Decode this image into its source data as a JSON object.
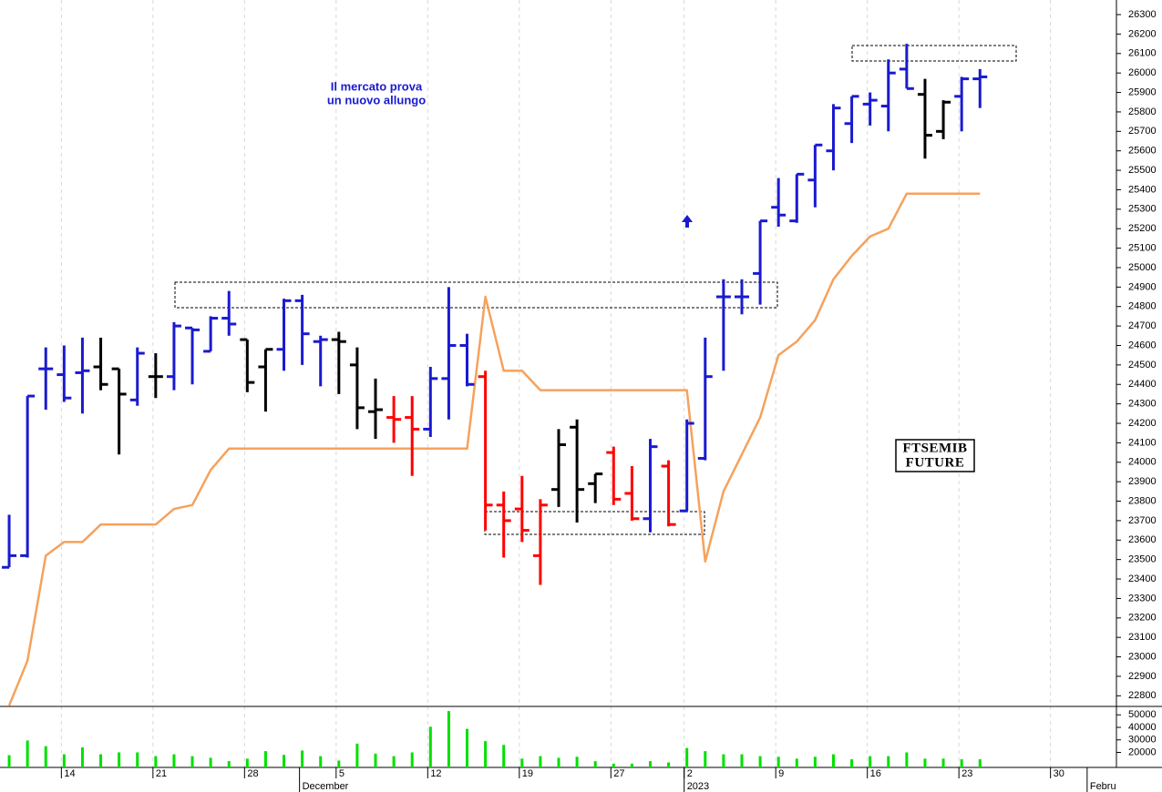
{
  "chart_data": {
    "type": "ohlc",
    "x": [
      0,
      1,
      2,
      3,
      4,
      5,
      6,
      7,
      8,
      9,
      10,
      11,
      12,
      13,
      14,
      15,
      16,
      17,
      18,
      19,
      20,
      21,
      22,
      23,
      24,
      25,
      26,
      27,
      28,
      29,
      30,
      31,
      32,
      33,
      34,
      35,
      36,
      37,
      38,
      39,
      40,
      41,
      42,
      43,
      44,
      45,
      46,
      47,
      48,
      49,
      50,
      51,
      52,
      53
    ],
    "open": [
      23460,
      23520,
      24480,
      24450,
      24460,
      24490,
      24480,
      24320,
      24440,
      24440,
      24690,
      24570,
      24740,
      24630,
      24490,
      24580,
      24830,
      24620,
      24630,
      24500,
      24260,
      24230,
      24230,
      24170,
      24430,
      24600,
      24440,
      23780,
      23760,
      23520,
      23860,
      24180,
      23890,
      24050,
      23840,
      23710,
      23980,
      23750,
      24020,
      24850,
      24850,
      24970,
      25310,
      25240,
      25450,
      25600,
      25740,
      25840,
      25830,
      26020,
      25890,
      25700,
      25880,
      25970
    ],
    "high": [
      23730,
      24340,
      24590,
      24600,
      24640,
      24640,
      24480,
      24590,
      24560,
      24720,
      24690,
      24750,
      24880,
      24630,
      24580,
      24840,
      24860,
      24650,
      24670,
      24590,
      24430,
      24340,
      24340,
      24490,
      24900,
      24660,
      24470,
      23850,
      23930,
      23810,
      24170,
      24220,
      23940,
      24080,
      23980,
      24120,
      24010,
      24220,
      24640,
      24940,
      24940,
      25240,
      25460,
      25480,
      25630,
      25840,
      25880,
      25900,
      26070,
      26150,
      25970,
      25860,
      25980,
      26020
    ],
    "low": [
      23460,
      23510,
      24270,
      24310,
      24250,
      24370,
      24040,
      24290,
      24330,
      24370,
      24400,
      24570,
      24650,
      24360,
      24260,
      24470,
      24500,
      24390,
      24350,
      24170,
      24120,
      24100,
      23930,
      24130,
      24220,
      24390,
      23650,
      23510,
      23590,
      23370,
      23770,
      23690,
      23790,
      23780,
      23700,
      23640,
      23670,
      23750,
      24010,
      24470,
      24760,
      24810,
      25210,
      25230,
      25310,
      25500,
      25640,
      25730,
      25700,
      25920,
      25560,
      25660,
      25700,
      25820
    ],
    "close": [
      23520,
      24340,
      24480,
      24330,
      24470,
      24400,
      24350,
      24560,
      24440,
      24700,
      24680,
      24740,
      24710,
      24410,
      24580,
      24830,
      24660,
      24630,
      24620,
      24280,
      24270,
      24220,
      24170,
      24430,
      24600,
      24400,
      23780,
      23700,
      23650,
      23780,
      24090,
      23860,
      23940,
      23810,
      23710,
      24080,
      23680,
      24200,
      24440,
      24850,
      24850,
      25240,
      25270,
      25480,
      25630,
      25820,
      25880,
      25860,
      26000,
      25920,
      25680,
      25850,
      25970,
      25980
    ],
    "colors": [
      "#1a1ad0",
      "#1a1ad0",
      "#1a1ad0",
      "#1a1ad0",
      "#1a1ad0",
      "#000000",
      "#000000",
      "#1a1ad0",
      "#000000",
      "#1a1ad0",
      "#1a1ad0",
      "#1a1ad0",
      "#1a1ad0",
      "#000000",
      "#000000",
      "#1a1ad0",
      "#1a1ad0",
      "#1a1ad0",
      "#000000",
      "#000000",
      "#000000",
      "#ff0000",
      "#ff0000",
      "#1a1ad0",
      "#1a1ad0",
      "#1a1ad0",
      "#ff0000",
      "#ff0000",
      "#ff0000",
      "#ff0000",
      "#000000",
      "#000000",
      "#000000",
      "#ff0000",
      "#ff0000",
      "#1a1ad0",
      "#ff0000",
      "#1a1ad0",
      "#1a1ad0",
      "#1a1ad0",
      "#1a1ad0",
      "#1a1ad0",
      "#1a1ad0",
      "#1a1ad0",
      "#1a1ad0",
      "#1a1ad0",
      "#1a1ad0",
      "#1a1ad0",
      "#1a1ad0",
      "#1a1ad0",
      "#000000",
      "#000000",
      "#1a1ad0",
      "#1a1ad0"
    ],
    "stop_line": {
      "color": "#f5a25d",
      "values": [
        22750,
        22980,
        23520,
        23590,
        23590,
        23680,
        23680,
        23680,
        23680,
        23760,
        23780,
        23960,
        24070,
        24070,
        24070,
        24070,
        24070,
        24070,
        24070,
        24070,
        24070,
        24070,
        24070,
        24070,
        24070,
        24070,
        24850,
        24470,
        24470,
        24370,
        24370,
        24370,
        24370,
        24370,
        24370,
        24370,
        24370,
        24370,
        23490,
        23850,
        24040,
        24230,
        24550,
        24620,
        24730,
        24940,
        25060,
        25160,
        25200,
        25380,
        25380,
        25380,
        25380,
        25380
      ]
    },
    "xlim": [
      -0.5,
      60.45
    ],
    "xticks": [
      {
        "value": 3,
        "label": "14"
      },
      {
        "value": 8,
        "label": "21"
      },
      {
        "value": 13,
        "label": "28"
      },
      {
        "value": 18,
        "label": "5"
      },
      {
        "value": 23,
        "label": "12"
      },
      {
        "value": 28,
        "label": "19"
      },
      {
        "value": 33,
        "label": "27"
      },
      {
        "value": 37,
        "label": "2"
      },
      {
        "value": 42,
        "label": "9"
      },
      {
        "value": 47,
        "label": "16"
      },
      {
        "value": 52,
        "label": "23"
      },
      {
        "value": 57,
        "label": "30"
      }
    ],
    "month_ticks": [
      {
        "value": 16,
        "label": "December"
      },
      {
        "value": 37,
        "label": "2023"
      },
      {
        "value": 59,
        "label": "Febru"
      }
    ],
    "ylim": [
      22750,
      26375
    ],
    "yticks": [
      22800,
      22900,
      23000,
      23100,
      23200,
      23300,
      23400,
      23500,
      23600,
      23700,
      23800,
      23900,
      24000,
      24100,
      24200,
      24300,
      24400,
      24500,
      24600,
      24700,
      24800,
      24900,
      25000,
      25100,
      25200,
      25300,
      25400,
      25500,
      25600,
      25700,
      25800,
      25900,
      26000,
      26100,
      26200,
      26300
    ],
    "grid": true,
    "volume": {
      "type": "bar",
      "color": "#00e000",
      "values": [
        17800,
        29500,
        25000,
        18500,
        24000,
        18500,
        20000,
        20000,
        17000,
        18500,
        17000,
        15700,
        13000,
        15000,
        21000,
        18000,
        21500,
        17000,
        13500,
        27000,
        19000,
        17000,
        20000,
        40500,
        53000,
        38800,
        29000,
        26000,
        15000,
        17000,
        15700,
        16500,
        13000,
        11000,
        11000,
        13000,
        12000,
        23500,
        21000,
        18500,
        18500,
        17000,
        16500,
        15000,
        16500,
        18500,
        14500,
        17000,
        17000,
        20000,
        15000,
        15000,
        14500,
        14500
      ],
      "ylim": [
        8000,
        56000
      ],
      "yticks": [
        20000,
        30000,
        40000,
        50000
      ]
    },
    "annotations": [
      "Il mercato prova",
      "un nuovo allungo"
    ],
    "label_box": [
      "FTSEMIB",
      "FUTURE"
    ]
  }
}
